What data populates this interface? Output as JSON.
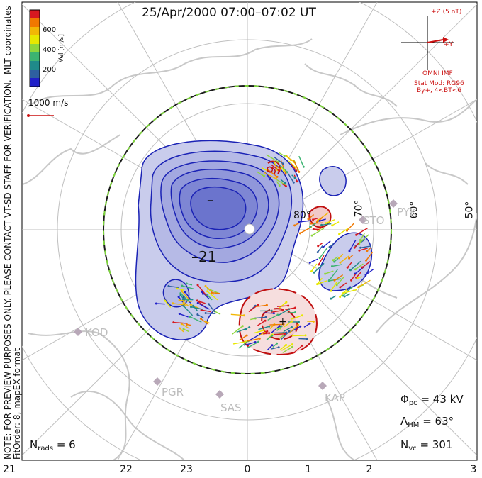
{
  "title": "25/Apr/2000 07:00–07:02 UT",
  "colorbar": {
    "label": "Vel [m/s]",
    "ticks": [
      "600",
      "400",
      "200"
    ],
    "colors": [
      "#d71920",
      "#f07800",
      "#f2b705",
      "#e8e800",
      "#8ed63c",
      "#3cb371",
      "#1f8a8a",
      "#2e5fa0",
      "#2020c8"
    ]
  },
  "reference_vector": {
    "label": "1000 m/s",
    "color": "#cc1111"
  },
  "imf": {
    "z_label": "+Z (5 nT)",
    "y_label": "+Y",
    "source": "OMNI IMF",
    "model": "Stat Mod: RG96",
    "condition": "By+, 4<BT<6"
  },
  "stats": {
    "phi_pc_value": "= 43 kV",
    "lambda_hm_value": "= 63°",
    "n_vc_value": "= 301",
    "n_rads_value": "= 6"
  },
  "side_notes": {
    "coordinates": "MLT coordinates",
    "preview": "NOTE: FOR PREVIEW PURPOSES ONLY. PLEASE CONTACT VT-SD STAFF FOR VERIFICATION.",
    "fit": "FitOrder: 8, mapEX format"
  },
  "latitude_labels": [
    "80°",
    "70°",
    "60°",
    "50°"
  ],
  "stations": [
    "KOD",
    "PGR",
    "SAS",
    "KAP",
    "STO",
    "PYK"
  ],
  "contour_labels": [
    "–",
    "–21",
    "+",
    "9"
  ],
  "chart_data": {
    "type": "map",
    "projection": "polar, magnetic local time",
    "mlt_ticks": [
      "21",
      "22",
      "23",
      "0",
      "1",
      "2",
      "3"
    ],
    "latitude_circles_deg": [
      80,
      70,
      60,
      50
    ],
    "heppner_maynard_boundary_lat_deg": 63,
    "cross_polar_cap_potential_kv": 43,
    "n_vectors": 301,
    "n_radars": 6,
    "potential_contours": {
      "negative_cell_min_kv": -21,
      "positive_cell": "+"
    },
    "velocity_scale_mps": [
      0,
      700
    ]
  }
}
